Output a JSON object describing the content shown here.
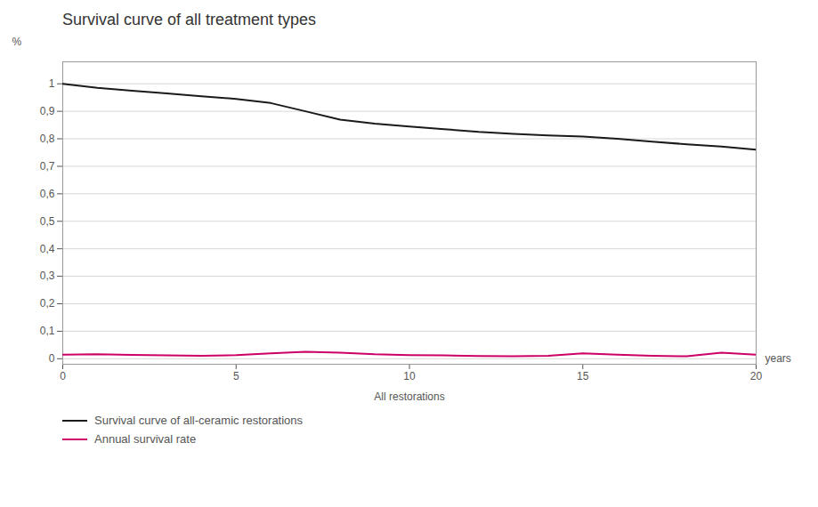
{
  "chart_data": {
    "type": "line",
    "title": "Survival curve of all treatment types",
    "xlabel": "All restorations",
    "ylabel": "%",
    "annotations": [
      {
        "text": "years",
        "x": 20,
        "y": 0
      }
    ],
    "x": [
      0,
      1,
      2,
      3,
      4,
      5,
      6,
      7,
      8,
      9,
      10,
      11,
      12,
      13,
      14,
      15,
      16,
      17,
      18,
      19,
      20
    ],
    "series": [
      {
        "name": "Survival curve of all-ceramic restorations",
        "color": "#1a1a1a",
        "values": [
          1.0,
          0.985,
          0.975,
          0.965,
          0.955,
          0.945,
          0.93,
          0.9,
          0.87,
          0.855,
          0.845,
          0.835,
          0.825,
          0.818,
          0.812,
          0.808,
          0.8,
          0.79,
          0.78,
          0.772,
          0.76
        ]
      },
      {
        "name": "Annual survival rate",
        "color": "#cc0066",
        "values": [
          0.015,
          0.016,
          0.014,
          0.012,
          0.011,
          0.013,
          0.02,
          0.025,
          0.022,
          0.016,
          0.013,
          0.012,
          0.01,
          0.009,
          0.011,
          0.02,
          0.015,
          0.011,
          0.009,
          0.022,
          0.015
        ]
      }
    ],
    "xlim": [
      0,
      20
    ],
    "ylim": [
      -0.02,
      1.08
    ],
    "xticks": [
      0,
      5,
      10,
      15,
      20
    ],
    "yticks": [
      0,
      {
        "value": 0.1,
        "label": "0,1"
      },
      {
        "value": 0.2,
        "label": "0,2"
      },
      {
        "value": 0.3,
        "label": "0,3"
      },
      {
        "value": 0.4,
        "label": "0,4"
      },
      {
        "value": 0.5,
        "label": "0,5"
      },
      {
        "value": 0.6,
        "label": "0,6"
      },
      {
        "value": 0.7,
        "label": "0,7"
      },
      {
        "value": 0.8,
        "label": "0,8"
      },
      {
        "value": 0.9,
        "label": "0,9"
      },
      1
    ],
    "grid": true,
    "legend": "bottom"
  }
}
